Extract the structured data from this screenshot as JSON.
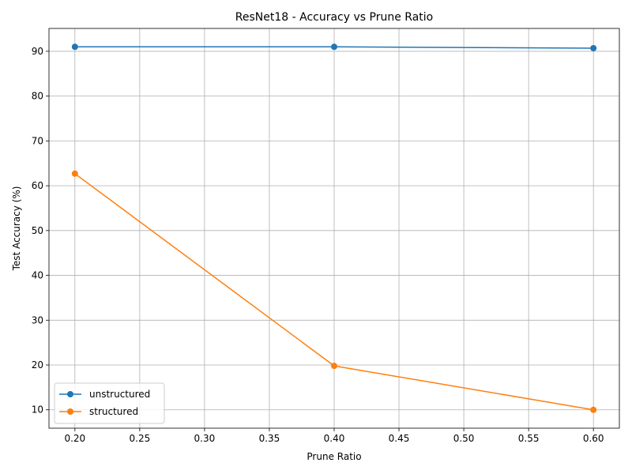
{
  "chart_data": {
    "type": "line",
    "title": "ResNet18 - Accuracy vs Prune Ratio",
    "xlabel": "Prune Ratio",
    "ylabel": "Test Accuracy (%)",
    "x": [
      0.2,
      0.4,
      0.6
    ],
    "xlim": [
      0.18,
      0.62
    ],
    "ylim": [
      5.9,
      95.1
    ],
    "xticks": [
      "0.20",
      "0.25",
      "0.30",
      "0.35",
      "0.40",
      "0.45",
      "0.50",
      "0.55",
      "0.60"
    ],
    "yticks": [
      "10",
      "20",
      "30",
      "40",
      "50",
      "60",
      "70",
      "80",
      "90"
    ],
    "grid": true,
    "legend_position": "lower-left",
    "series": [
      {
        "name": "unstructured",
        "values": [
          91.0,
          91.0,
          90.7
        ],
        "color": "#1f77b4",
        "marker": "circle"
      },
      {
        "name": "structured",
        "values": [
          62.7,
          19.8,
          10.0
        ],
        "color": "#ff7f0e",
        "marker": "circle"
      }
    ]
  }
}
